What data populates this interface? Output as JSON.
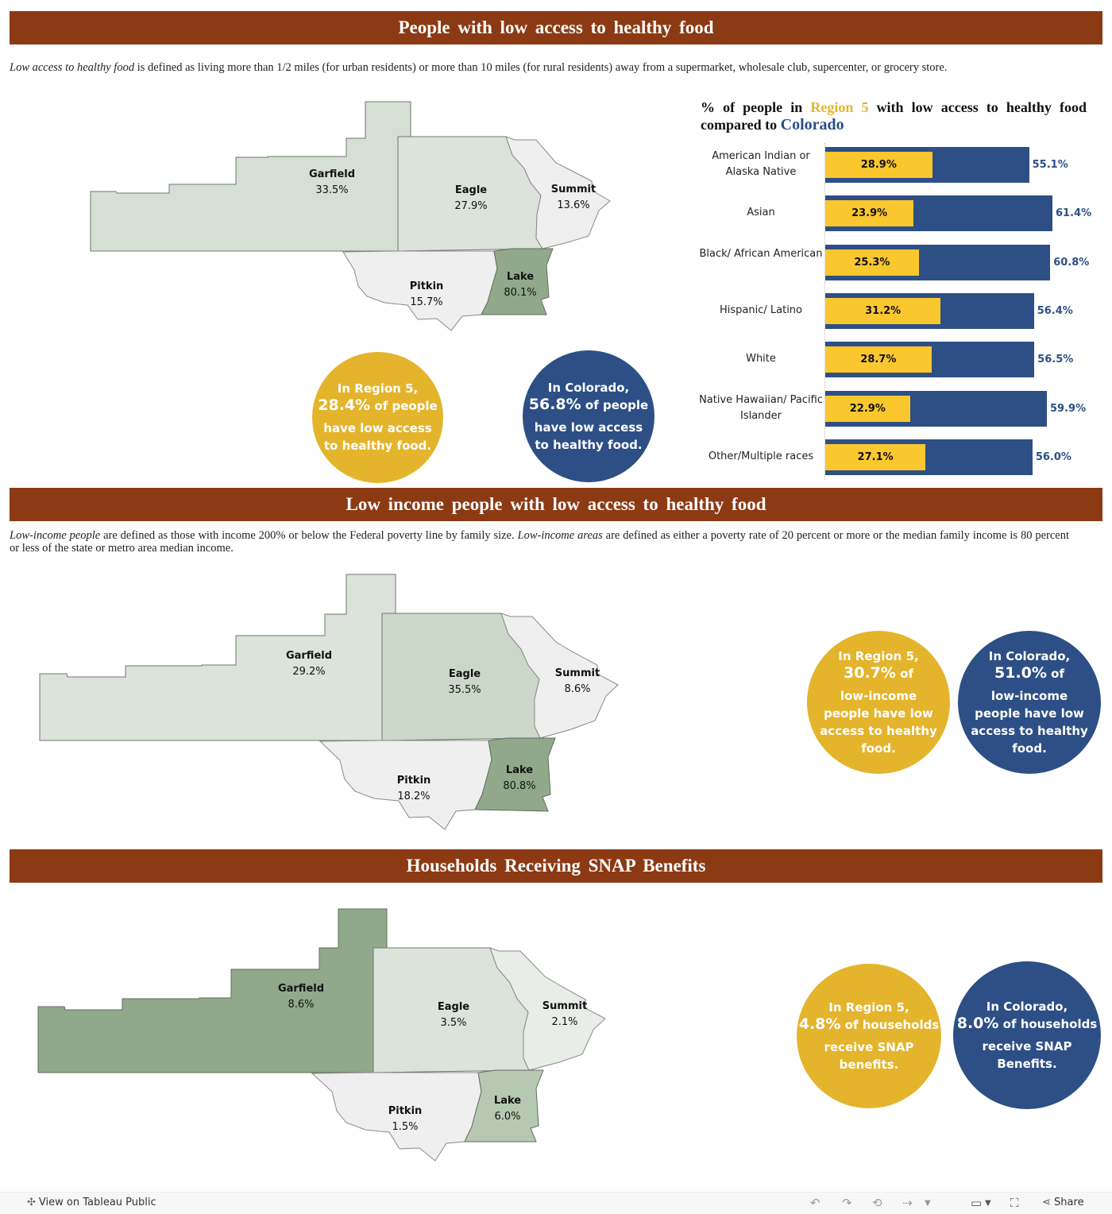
{
  "sections": {
    "s1": {
      "title": "People with low access to healthy food",
      "desc_italic": "Low access to healthy food",
      "desc_rest": " is defined as living more than 1/2 miles (for urban residents) or more than 10 miles (for rural residents) away from a supermarket, wholesale club, supercenter, or grocery store."
    },
    "s2": {
      "title": "Low income people with low access to healthy food",
      "desc_i1": "Low-income people",
      "desc_t1": " are defined as those with income 200% or below the Federal poverty line by family size. ",
      "desc_i2": "Low-income areas",
      "desc_t2": " are defined as either a poverty rate of 20 percent or more or the median family income is 80 percent or less of the state or metro area median income."
    },
    "s3": {
      "title": "Households Receiving SNAP Benefits"
    }
  },
  "maps": {
    "m1": {
      "garfield": {
        "name": "Garfield",
        "value": "33.5%"
      },
      "eagle": {
        "name": "Eagle",
        "value": "27.9%"
      },
      "summit": {
        "name": "Summit",
        "value": "13.6%"
      },
      "pitkin": {
        "name": "Pitkin",
        "value": "15.7%"
      },
      "lake": {
        "name": "Lake",
        "value": "80.1%"
      }
    },
    "m2": {
      "garfield": {
        "name": "Garfield",
        "value": "29.2%"
      },
      "eagle": {
        "name": "Eagle",
        "value": "35.5%"
      },
      "summit": {
        "name": "Summit",
        "value": "8.6%"
      },
      "pitkin": {
        "name": "Pitkin",
        "value": "18.2%"
      },
      "lake": {
        "name": "Lake",
        "value": "80.8%"
      }
    },
    "m3": {
      "garfield": {
        "name": "Garfield",
        "value": "8.6%"
      },
      "eagle": {
        "name": "Eagle",
        "value": "3.5%"
      },
      "summit": {
        "name": "Summit",
        "value": "2.1%"
      },
      "pitkin": {
        "name": "Pitkin",
        "value": "1.5%"
      },
      "lake": {
        "name": "Lake",
        "value": "6.0%"
      }
    }
  },
  "colors": {
    "banner": "#8b3a14",
    "region": "#e4b42c",
    "colorado": "#2d4f86",
    "map_high": "#91a98a",
    "map_mid": "#cbd7c9",
    "map_low": "#dbe3da",
    "map_lowest": "#efefef"
  },
  "circles": {
    "c1": {
      "l1": "In Region 5,",
      "big": "28.4%",
      "sm": " of people",
      "l3": "have low access to healthy food."
    },
    "c2": {
      "l1": "In Colorado,",
      "big": "56.8%",
      "sm": " of  people",
      "l3": "have low access to healthy food."
    },
    "c3": {
      "l1": "In Region 5,",
      "big": "30.7%",
      "sm": " of",
      "l3": "low-income people have low access to healthy food."
    },
    "c4": {
      "l1": "In Colorado,",
      "big": "51.0%",
      "sm": " of",
      "l3": "low-income people have low access to healthy food."
    },
    "c5": {
      "l1": "In Region 5,",
      "big": "4.8%",
      "sm": " of households",
      "l3": "receive SNAP benefits."
    },
    "c6": {
      "l1": "In Colorado,",
      "big": "8.0%",
      "sm": " of households",
      "l3": "receive SNAP Benefits."
    }
  },
  "bar_chart": {
    "title_pre": "% of people in ",
    "title_region": "Region 5",
    "title_mid": " with low access to healthy food compared to ",
    "title_colorado": "Colorado"
  },
  "chart_data": {
    "type": "bar",
    "orientation": "horizontal",
    "title": "% of people in Region 5 with low access to healthy food compared to Colorado",
    "categories": [
      "American Indian or Alaska Native",
      "Asian",
      "Black/ African American",
      "Hispanic/ Latino",
      "White",
      "Native Hawaiian/ Pacific Islander",
      "Other/Multiple races"
    ],
    "series": [
      {
        "name": "Region 5",
        "values": [
          28.9,
          23.9,
          25.3,
          31.2,
          28.7,
          22.9,
          27.1
        ],
        "labels": [
          "28.9%",
          "23.9%",
          "25.3%",
          "31.2%",
          "28.7%",
          "22.9%",
          "27.1%"
        ],
        "color": "#fbc72f"
      },
      {
        "name": "Colorado",
        "values": [
          55.1,
          61.4,
          60.8,
          56.4,
          56.5,
          59.9,
          56.0
        ],
        "labels": [
          "55.1%",
          "61.4%",
          "60.8%",
          "56.4%",
          "56.5%",
          "59.9%",
          "56.0%"
        ],
        "color": "#2d4f86"
      }
    ],
    "xlim": [
      0,
      61.4
    ]
  },
  "footer": {
    "view_label": "View on Tableau Public",
    "share_label": "Share"
  }
}
